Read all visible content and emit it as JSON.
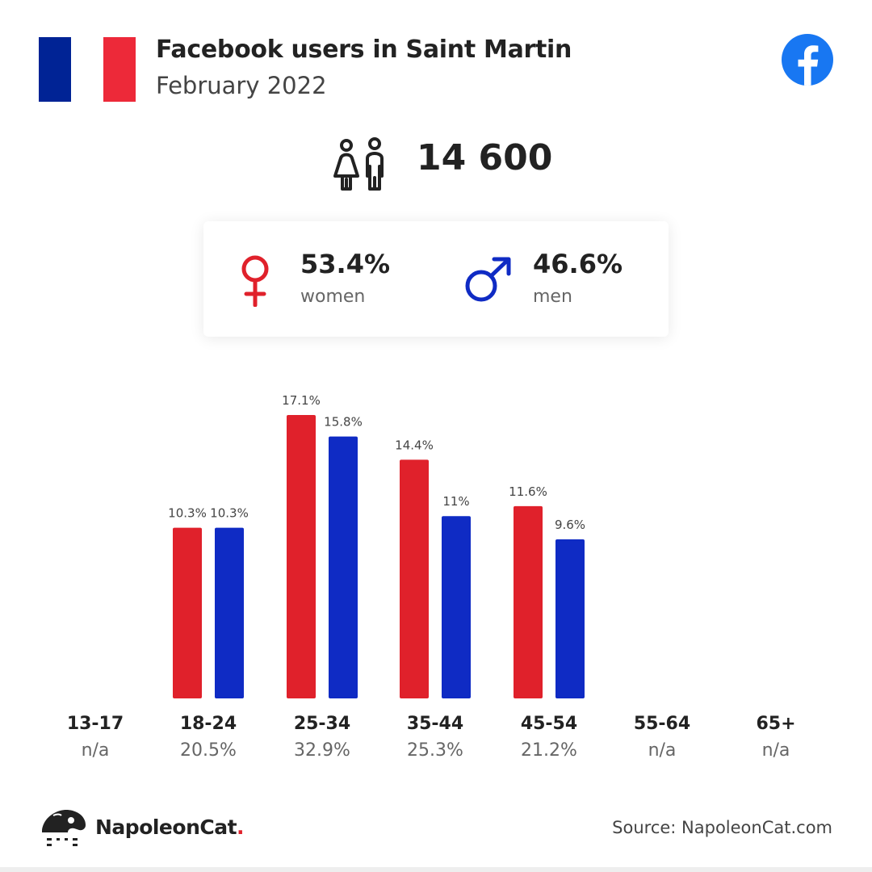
{
  "header": {
    "title": "Facebook users in Saint Martin",
    "subtitle": "February 2022"
  },
  "flag": {
    "colors": [
      "#002395",
      "#ffffff",
      "#ed2939"
    ],
    "icon": "france-flag"
  },
  "brand_icon": "facebook-icon",
  "total": {
    "value": "14 600",
    "icon": "people-icon"
  },
  "gender": {
    "women": {
      "pct": "53.4%",
      "label": "women",
      "icon": "female-symbol-icon",
      "color": "#e0212b"
    },
    "men": {
      "pct": "46.6%",
      "label": "men",
      "icon": "male-symbol-icon",
      "color": "#0f2bc4"
    }
  },
  "age_groups": [
    {
      "label": "13-17",
      "share": "n/a"
    },
    {
      "label": "18-24",
      "share": "20.5%"
    },
    {
      "label": "25-34",
      "share": "32.9%"
    },
    {
      "label": "35-44",
      "share": "25.3%"
    },
    {
      "label": "45-54",
      "share": "21.2%"
    },
    {
      "label": "55-64",
      "share": "n/a"
    },
    {
      "label": "65+",
      "share": "n/a"
    }
  ],
  "chart_data": {
    "type": "bar",
    "categories": [
      "13-17",
      "18-24",
      "25-34",
      "35-44",
      "45-54",
      "55-64",
      "65+"
    ],
    "series": [
      {
        "color": "#e0212b",
        "values": [
          null,
          10.3,
          17.1,
          14.4,
          11.6,
          null,
          null
        ],
        "labels": [
          "",
          "10.3%",
          "17.1%",
          "14.4%",
          "11.6%",
          "",
          ""
        ]
      },
      {
        "color": "#0f2bc4",
        "values": [
          null,
          10.3,
          15.8,
          11,
          9.6,
          null,
          null
        ],
        "labels": [
          "",
          "10.3%",
          "15.8%",
          "11%",
          "9.6%",
          "",
          ""
        ]
      }
    ],
    "ylim": [
      0,
      17.1
    ],
    "grid": false,
    "legend": "none"
  },
  "footer": {
    "brand_name": "NapoleonCat",
    "brand_dot": ".",
    "source": "Source: NapoleonCat.com"
  }
}
